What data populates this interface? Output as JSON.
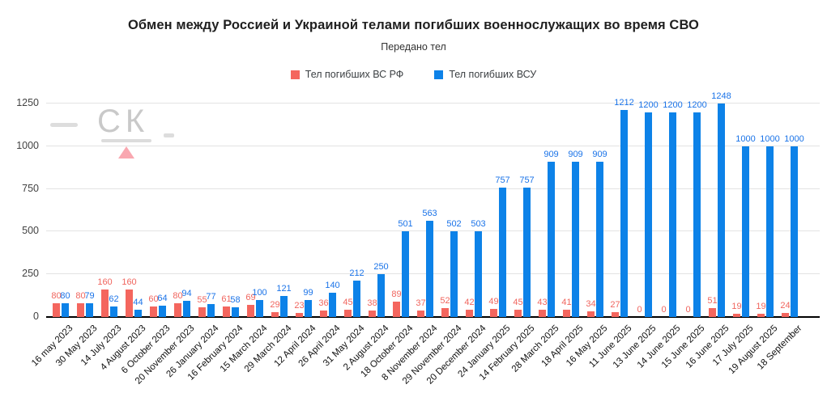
{
  "title": "Обмен между Россией и Украиной телами погибших военнослужащих во время СВО",
  "subtitle": "Передано тел",
  "watermark": {
    "text": "СК"
  },
  "colors": {
    "rf": "#f4665e",
    "vsu": "#0d82e8",
    "rf_label": "#f0655e",
    "vsu_label": "#1a73e8",
    "grid": "#e3e3e3",
    "axis": "#000000"
  },
  "chart_data": {
    "type": "bar",
    "title": "Обмен между Россией и Украиной телами погибших военнослужащих во время СВО",
    "subtitle": "Передано тел",
    "categories": [
      "16 may 2023",
      "30 May 2023",
      "14 July 2023",
      "4 August 2023",
      "6 October 2023",
      "20 November 2023",
      "26 January 2024",
      "16 February 2024",
      "15 March 2024",
      "29 March 2024",
      "12 April 2024",
      "26 April 2024",
      "31 May 2024",
      "2 August 2024",
      "18 October 2024",
      "8 November 2024",
      "29 November 2024",
      "20 December 2024",
      "24 January 2025",
      "14 February 2025",
      "28 March 2025",
      "18 April 2025",
      "16 May 2025",
      "11 June 2025",
      "13 June 2025",
      "14 June 2025",
      "15 June 2025",
      "16 June 2025",
      "17 July 2025",
      "19 August 2025",
      "18 September"
    ],
    "series": [
      {
        "name": "Тел погибших ВС РФ",
        "color": "#f4665e",
        "values": [
          80,
          80,
          160,
          160,
          60,
          80,
          55,
          61,
          69,
          29,
          23,
          36,
          45,
          38,
          89,
          37,
          52,
          42,
          49,
          45,
          43,
          41,
          34,
          27,
          0,
          0,
          0,
          51,
          19,
          19,
          24
        ]
      },
      {
        "name": "Тел погибших ВСУ",
        "color": "#0d82e8",
        "values": [
          80,
          79,
          62,
          44,
          64,
          94,
          77,
          58,
          100,
          121,
          99,
          140,
          212,
          250,
          501,
          563,
          502,
          503,
          757,
          757,
          909,
          909,
          909,
          1212,
          1200,
          1200,
          1200,
          1248,
          1000,
          1000,
          1000
        ]
      }
    ],
    "ylim": [
      0,
      1250
    ],
    "yticks": [
      0,
      250,
      500,
      750,
      1000,
      1250
    ],
    "grid": true,
    "legend_position": "top"
  }
}
